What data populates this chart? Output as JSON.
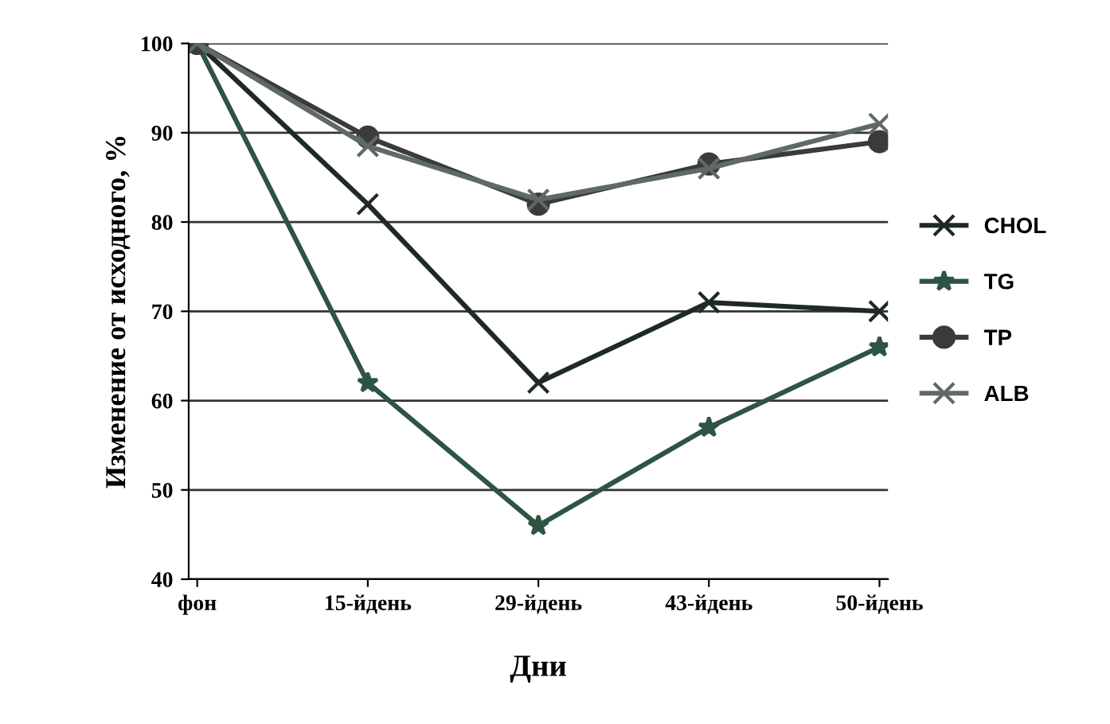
{
  "chart_data": {
    "type": "line",
    "xlabel": "Дни",
    "ylabel": "Изменение от исходного, %",
    "categories": [
      "фон",
      "15-йдень",
      "29-йдень",
      "43-йдень",
      "50-йдень"
    ],
    "series": [
      {
        "name": "CHOL",
        "color": "#1f2a24",
        "marker": "cross",
        "values": [
          100,
          82,
          62,
          71,
          70
        ]
      },
      {
        "name": "TG",
        "color": "#2e5443",
        "marker": "star",
        "values": [
          100,
          62,
          46,
          57,
          66
        ]
      },
      {
        "name": "TP",
        "color": "#3b3b3b",
        "marker": "circle",
        "values": [
          100,
          89.5,
          82,
          86.5,
          89
        ]
      },
      {
        "name": "ALB",
        "color": "#5f6a65",
        "marker": "cross",
        "values": [
          100,
          88.5,
          82.5,
          86,
          91
        ]
      }
    ],
    "ylim": [
      40,
      100
    ],
    "yticks": [
      40,
      50,
      60,
      70,
      80,
      90,
      100
    ],
    "grid": "y",
    "legend": "right",
    "line_style": "solid"
  }
}
